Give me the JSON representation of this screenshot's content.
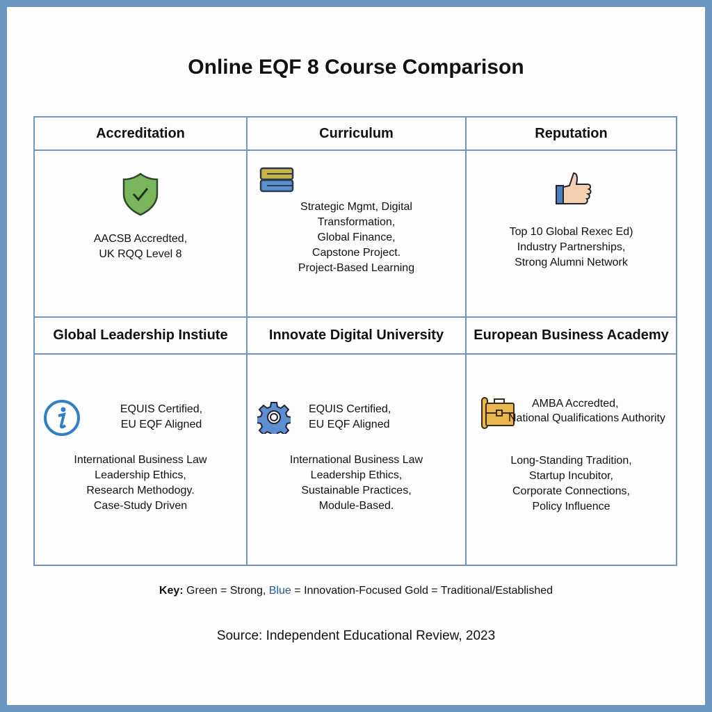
{
  "title": "Online EQF 8 Course Comparison",
  "header_row": [
    "Accreditation",
    "Curriculum",
    "Reputation"
  ],
  "row1": [
    {
      "icon": "shield-check-icon",
      "lines": [
        "AACSB Accredted,",
        "UK RQQ Level 8"
      ]
    },
    {
      "icon": "books-icon",
      "lines": [
        "Strategic Mgmt, Digital",
        "Transformation,",
        "Global Finance,",
        "Capstone Project.",
        "Project-Based Learning"
      ]
    },
    {
      "icon": "thumbs-up-icon",
      "lines": [
        "Top 10 Global Rexec Ed)",
        "Industry Partnerships,",
        "Strong Alumni Network"
      ]
    }
  ],
  "institution_row": [
    "Global Leadership Instiute",
    "Innovate Digital University",
    "European Business Academy"
  ],
  "row2": [
    {
      "icon": "info-icon",
      "top": [
        "EQUIS Certified,",
        "EU EQF Aligned"
      ],
      "bottom": [
        "International Business Law",
        "Leadership Ethics,",
        "Research Methodogy.",
        "Case-Study Driven"
      ]
    },
    {
      "icon": "gear-icon",
      "top": [
        "EQUIS Certified,",
        "EU EQF Aligned"
      ],
      "bottom": [
        "International Business Law",
        "Leadership Ethics,",
        "Sustainable Practices,",
        "Module-Based."
      ]
    },
    {
      "icon": "briefcase-scroll-icon",
      "top": [
        "AMBA Accredted,",
        "National Qualifications Authority"
      ],
      "bottom": [
        "Long-Standing Tradition,",
        "Startup Incubitor,",
        "Corporate Connections,",
        "Policy Influence"
      ]
    }
  ],
  "key": {
    "label": "Key:",
    "green": " Green = Strong, ",
    "blue": "Blue",
    "rest": " = Innovation-Focused Gold = Traditional/Established"
  },
  "source": "Source: Independent Educational Review, 2023",
  "colors": {
    "frame": "#6b96c0",
    "green": "#7ab55c",
    "blue": "#4a86c5",
    "gold": "#e8b54f",
    "key_blue": "#1f5a9a"
  }
}
